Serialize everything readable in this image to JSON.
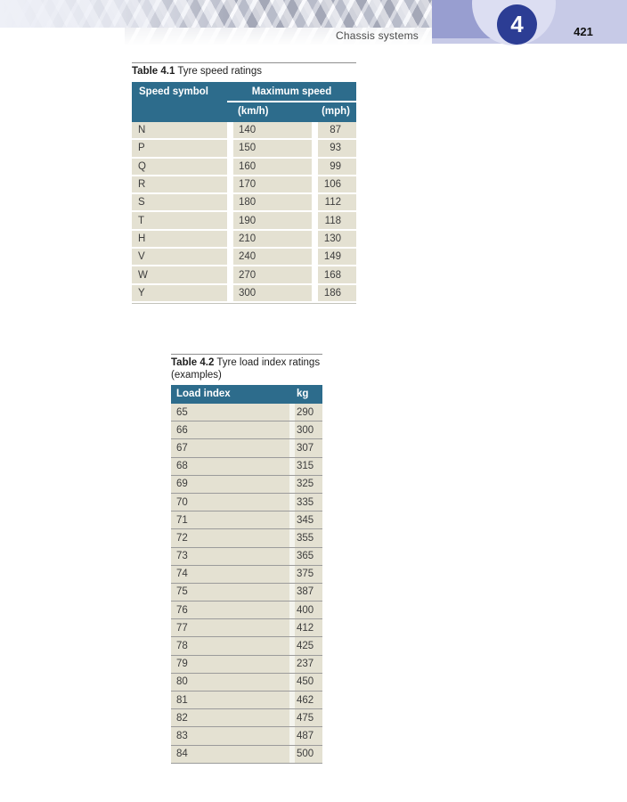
{
  "page": {
    "running_header": "Chassis systems",
    "chapter_number": "4",
    "page_number": "421"
  },
  "colors": {
    "table_header_teal": "#2d6c8c",
    "row_beige": "#e4e1d2",
    "band_dark_lavender": "#989ed0",
    "band_light_lavender": "#c7cae7",
    "chapter_circle_blue": "#2c3d94",
    "chapter_circle_halo": "#dcdef2",
    "separator_gray": "#9b9b9b"
  },
  "table1": {
    "caption_label": "Table 4.1",
    "caption_text": " Tyre speed ratings",
    "col1_header": "Speed symbol",
    "group_header": "Maximum speed",
    "sub_kmh": "(km/h)",
    "sub_mph": "(mph)",
    "rows": [
      {
        "symbol": "N",
        "kmh": "140",
        "mph": "87"
      },
      {
        "symbol": "P",
        "kmh": "150",
        "mph": "93"
      },
      {
        "symbol": "Q",
        "kmh": "160",
        "mph": "99"
      },
      {
        "symbol": "R",
        "kmh": "170",
        "mph": "106"
      },
      {
        "symbol": "S",
        "kmh": "180",
        "mph": "112"
      },
      {
        "symbol": "T",
        "kmh": "190",
        "mph": "118"
      },
      {
        "symbol": "H",
        "kmh": "210",
        "mph": "130"
      },
      {
        "symbol": "V",
        "kmh": "240",
        "mph": "149"
      },
      {
        "symbol": "W",
        "kmh": "270",
        "mph": "168"
      },
      {
        "symbol": "Y",
        "kmh": "300",
        "mph": "186"
      }
    ]
  },
  "table2": {
    "caption_label": "Table 4.2",
    "caption_text": " Tyre load index ratings (examples)",
    "col1_header": "Load index",
    "col2_header": "kg",
    "rows": [
      {
        "load": "65",
        "kg": "290"
      },
      {
        "load": "66",
        "kg": "300"
      },
      {
        "load": "67",
        "kg": "307"
      },
      {
        "load": "68",
        "kg": "315"
      },
      {
        "load": "69",
        "kg": "325"
      },
      {
        "load": "70",
        "kg": "335"
      },
      {
        "load": "71",
        "kg": "345"
      },
      {
        "load": "72",
        "kg": "355"
      },
      {
        "load": "73",
        "kg": "365"
      },
      {
        "load": "74",
        "kg": "375"
      },
      {
        "load": "75",
        "kg": "387"
      },
      {
        "load": "76",
        "kg": "400"
      },
      {
        "load": "77",
        "kg": "412"
      },
      {
        "load": "78",
        "kg": "425"
      },
      {
        "load": "79",
        "kg": "237"
      },
      {
        "load": "80",
        "kg": "450"
      },
      {
        "load": "81",
        "kg": "462"
      },
      {
        "load": "82",
        "kg": "475"
      },
      {
        "load": "83",
        "kg": "487"
      },
      {
        "load": "84",
        "kg": "500"
      }
    ]
  }
}
